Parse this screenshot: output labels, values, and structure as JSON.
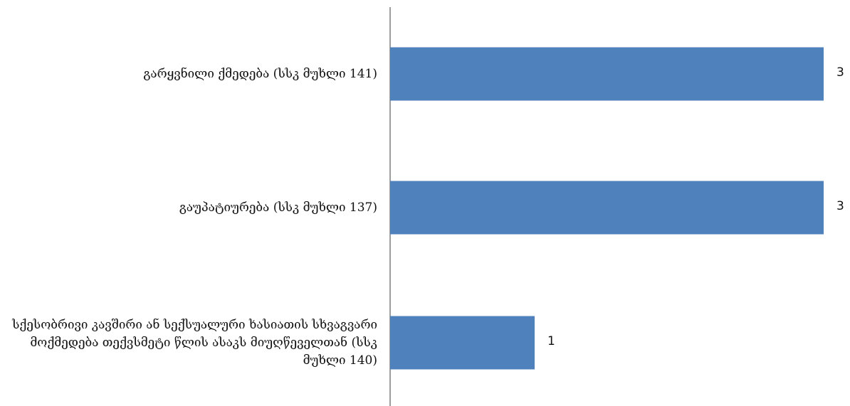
{
  "chart_data": {
    "type": "bar",
    "orientation": "horizontal",
    "categories": [
      "გარყვნილი ქმედება (სსკ მუხლი 141)",
      "გაუპატიურება (სსკ მუხლი 137)",
      "სქესობრივი კავშირი ან სექსუალური ხასიათის სხვაგვარი მოქმედება თექვსმეტი წლის ასაკს მიუღწეველთან (სსკ მუხლი 140)"
    ],
    "values": [
      3,
      3,
      1
    ],
    "data_labels": [
      "3",
      "3",
      "1"
    ],
    "xlim": [
      0,
      3
    ],
    "grid": false,
    "legend": "none",
    "bar_color": "#4F81BD",
    "axis_color": "#7F7F7F"
  }
}
